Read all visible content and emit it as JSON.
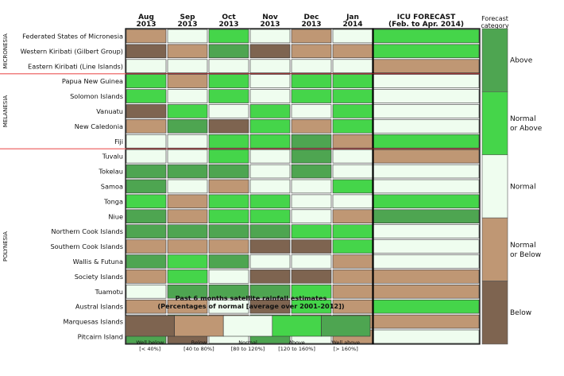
{
  "chart_data": {
    "type": "heatmap",
    "months": [
      {
        "month": "Aug",
        "year": "2013"
      },
      {
        "month": "Sep",
        "year": "2013"
      },
      {
        "month": "Oct",
        "year": "2013"
      },
      {
        "month": "Nov",
        "year": "2013"
      },
      {
        "month": "Dec",
        "year": "2013"
      },
      {
        "month": "Jan",
        "year": "2014"
      }
    ],
    "forecast_header": [
      "ICU FORECAST",
      "(Feb. to Apr. 2014)"
    ],
    "category_header": [
      "Forecast",
      "category"
    ],
    "regions": [
      {
        "name": "MICRONESIA",
        "color": "#f08080"
      },
      {
        "name": "MELANESIA",
        "color": "#f08080"
      },
      {
        "name": "POLYNESIA",
        "color": "#f08080"
      }
    ],
    "rows": [
      {
        "island": "Federated States of Micronesia",
        "region": "MICRONESIA",
        "values": [
          "below",
          "normal",
          "above",
          "normal",
          "below",
          "normal"
        ],
        "forecast": "above"
      },
      {
        "island": "Western Kiribati (Gilbert Group)",
        "region": "MICRONESIA",
        "values": [
          "well_below",
          "below",
          "well_above",
          "well_below",
          "below",
          "below"
        ],
        "forecast": "above"
      },
      {
        "island": "Eastern Kiribati (Line Islands)",
        "region": "MICRONESIA",
        "values": [
          "normal",
          "normal",
          "normal",
          "normal",
          "normal",
          "normal"
        ],
        "forecast": "below"
      },
      {
        "island": "Papua New Guinea",
        "region": "MELANESIA",
        "values": [
          "above",
          "below",
          "above",
          "normal",
          "above",
          "above"
        ],
        "forecast": "normal"
      },
      {
        "island": "Solomon Islands",
        "region": "MELANESIA",
        "values": [
          "above",
          "normal",
          "above",
          "normal",
          "above",
          "above"
        ],
        "forecast": "normal"
      },
      {
        "island": "Vanuatu",
        "region": "MELANESIA",
        "values": [
          "well_below",
          "above",
          "normal",
          "above",
          "normal",
          "above"
        ],
        "forecast": "normal"
      },
      {
        "island": "New Caledonia",
        "region": "MELANESIA",
        "values": [
          "below",
          "well_above",
          "well_below",
          "above",
          "below",
          "above"
        ],
        "forecast": "normal"
      },
      {
        "island": "Fiji",
        "region": "MELANESIA",
        "values": [
          "normal",
          "normal",
          "above",
          "above",
          "well_above",
          "below"
        ],
        "forecast": "above"
      },
      {
        "island": "Tuvalu",
        "region": "POLYNESIA",
        "values": [
          "normal",
          "normal",
          "above",
          "normal",
          "well_above",
          "normal"
        ],
        "forecast": "below"
      },
      {
        "island": "Tokelau",
        "region": "POLYNESIA",
        "values": [
          "well_above",
          "well_above",
          "well_above",
          "normal",
          "well_above",
          "normal"
        ],
        "forecast": "normal"
      },
      {
        "island": "Samoa",
        "region": "POLYNESIA",
        "values": [
          "well_above",
          "normal",
          "below",
          "normal",
          "normal",
          "above"
        ],
        "forecast": "normal"
      },
      {
        "island": "Tonga",
        "region": "POLYNESIA",
        "values": [
          "above",
          "below",
          "above",
          "above",
          "normal",
          "normal"
        ],
        "forecast": "above"
      },
      {
        "island": "Niue",
        "region": "POLYNESIA",
        "values": [
          "well_above",
          "below",
          "above",
          "above",
          "normal",
          "below"
        ],
        "forecast": "well_above"
      },
      {
        "island": "Northern Cook Islands",
        "region": "POLYNESIA",
        "values": [
          "well_above",
          "well_above",
          "well_above",
          "well_above",
          "above",
          "above"
        ],
        "forecast": "normal"
      },
      {
        "island": "Southern Cook Islands",
        "region": "POLYNESIA",
        "values": [
          "below",
          "below",
          "below",
          "well_below",
          "well_below",
          "above"
        ],
        "forecast": "normal"
      },
      {
        "island": "Wallis & Futuna",
        "region": "POLYNESIA",
        "values": [
          "well_above",
          "above",
          "well_above",
          "normal",
          "normal",
          "below"
        ],
        "forecast": "normal"
      },
      {
        "island": "Society Islands",
        "region": "POLYNESIA",
        "values": [
          "below",
          "above",
          "normal",
          "well_below",
          "well_below",
          "below"
        ],
        "forecast": "below"
      },
      {
        "island": "Tuamotu",
        "region": "POLYNESIA",
        "values": [
          "normal",
          "well_above",
          "well_above",
          "well_above",
          "above",
          "below"
        ],
        "forecast": "below"
      },
      {
        "island": "Austral Islands",
        "region": "POLYNESIA",
        "values": [
          "below",
          "below",
          "normal",
          "well_below",
          "above",
          "below"
        ],
        "forecast": "above"
      },
      {
        "island": "Marquesas Islands",
        "region": "POLYNESIA",
        "values": [
          "normal",
          "well_above",
          "below",
          "well_above",
          "below",
          "below"
        ],
        "forecast": "below"
      },
      {
        "island": "Pitcairn Island",
        "region": "POLYNESIA",
        "values": [
          "well_above",
          "well_below",
          "normal",
          "well_above",
          "normal",
          "below"
        ],
        "forecast": "normal"
      }
    ],
    "bottom_title": [
      "Past 6 months satellite rainfall estimates",
      "(Percentages of normal [average over 2001-2012])"
    ],
    "legend": [
      {
        "key": "well_below",
        "label": "Well below",
        "range": "[< 40%]",
        "color": "#7e6450"
      },
      {
        "key": "below",
        "label": "Below",
        "range": "[40 to 80%]",
        "color": "#bf9774"
      },
      {
        "key": "normal",
        "label": "Normal",
        "range": "[80 to 120%]",
        "color": "#effdef"
      },
      {
        "key": "above",
        "label": "Above",
        "range": "[120 to 160%]",
        "color": "#45d54a"
      },
      {
        "key": "well_above",
        "label": "Well above",
        "range": "[> 160%]",
        "color": "#4ea551"
      }
    ],
    "forecast_categories": [
      {
        "key": "above",
        "lines": [
          "Above"
        ],
        "color": "#4ea551"
      },
      {
        "key": "normal_or_above",
        "lines": [
          "Normal",
          "or Above"
        ],
        "color": "#45d54a"
      },
      {
        "key": "normal",
        "lines": [
          "Normal"
        ],
        "color": "#effdef"
      },
      {
        "key": "normal_or_below",
        "lines": [
          "Normal",
          "or Below"
        ],
        "color": "#bf9774"
      },
      {
        "key": "below",
        "lines": [
          "Below"
        ],
        "color": "#7e6450"
      }
    ],
    "forecast_colors": {
      "above": "#45d54a",
      "well_above": "#4ea551",
      "normal": "#effdef",
      "below": "#bf9774"
    }
  }
}
